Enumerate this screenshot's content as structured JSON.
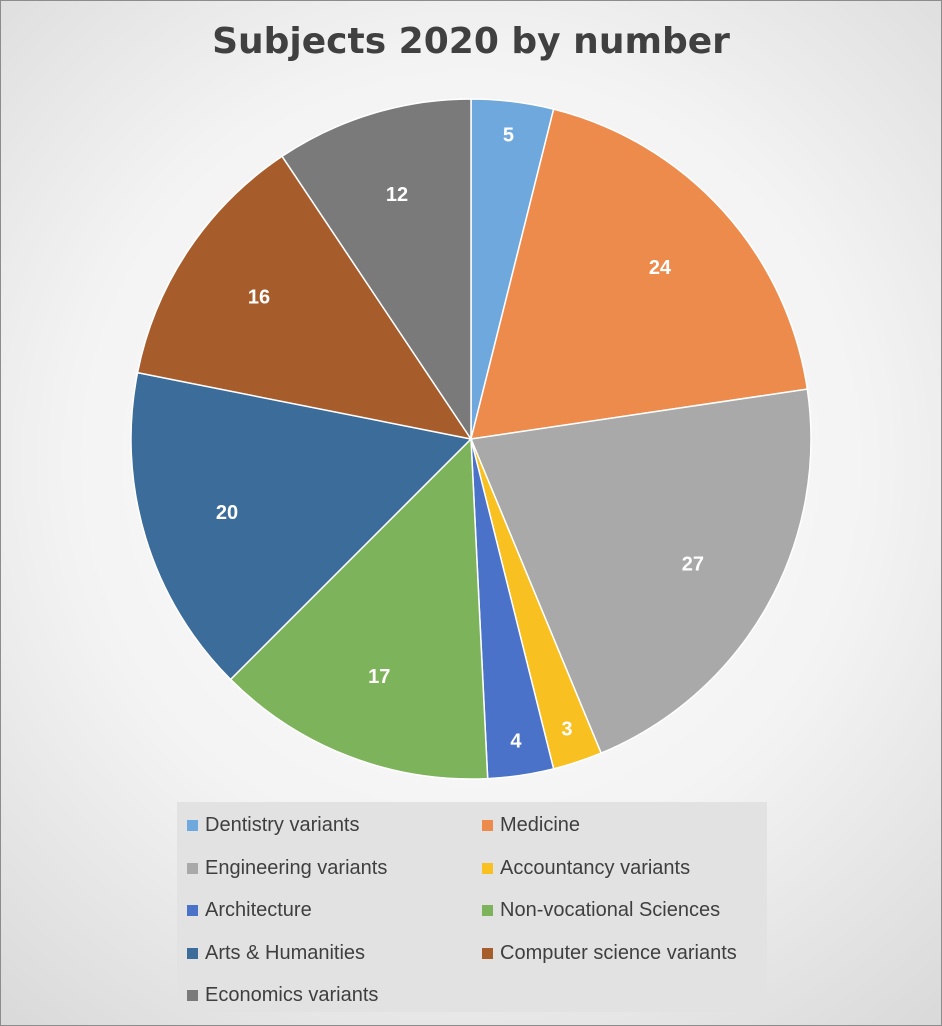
{
  "chart_data": {
    "type": "pie",
    "title": "Subjects 2020 by number",
    "categories": [
      "Dentistry variants",
      "Medicine",
      "Engineering variants",
      "Accountancy variants",
      "Architecture",
      "Non-vocational Sciences",
      "Arts & Humanities",
      "Computer science variants",
      "Economics variants"
    ],
    "values": [
      5,
      24,
      27,
      3,
      4,
      17,
      20,
      16,
      12
    ],
    "colors": [
      "#6fa8dc",
      "#ed8b4d",
      "#a9a9a9",
      "#f8c020",
      "#4a72c8",
      "#7db35a",
      "#3c6c9a",
      "#a75c2b",
      "#7a7a7a"
    ],
    "data_labels": [
      "5",
      "24",
      "27",
      "3",
      "4",
      "17",
      "20",
      "16",
      "12"
    ],
    "legend_position": "bottom",
    "start_angle": "12 o'clock",
    "direction": "clockwise"
  }
}
